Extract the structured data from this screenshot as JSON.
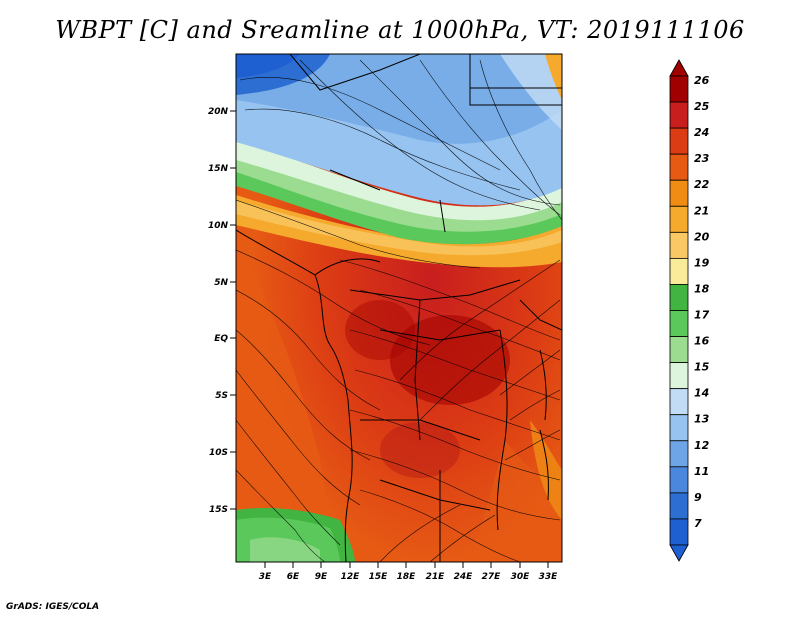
{
  "title": "WBPT [C] and Sreamline at 1000hPa, VT: 2019111106",
  "footer": "GrADS: IGES/COLA",
  "map": {
    "lat_labels": [
      "20N",
      "15N",
      "10N",
      "5N",
      "EQ",
      "5S",
      "10S",
      "15S"
    ],
    "lon_labels": [
      "3E",
      "6E",
      "9E",
      "12E",
      "15E",
      "18E",
      "21E",
      "24E",
      "27E",
      "30E",
      "33E"
    ],
    "lat_range": [
      -19.5,
      24.5
    ],
    "lon_range": [
      0,
      34.5
    ]
  },
  "colorbar": {
    "labels": [
      "26",
      "25",
      "24",
      "23",
      "22",
      "21",
      "20",
      "19",
      "18",
      "17",
      "16",
      "15",
      "14",
      "13",
      "12",
      "11",
      "9",
      "7"
    ],
    "colors": [
      "#a00000",
      "#c81e1e",
      "#dc3c14",
      "#e65a14",
      "#f08c14",
      "#f5aa2d",
      "#fac864",
      "#faeb9b",
      "#41b441",
      "#5ac85a",
      "#9bdc91",
      "#dcf5dc",
      "#c3dcf5",
      "#96c3f0",
      "#6ea5e6",
      "#4b87dc",
      "#2d6ed2",
      "#1e5fd2"
    ]
  }
}
